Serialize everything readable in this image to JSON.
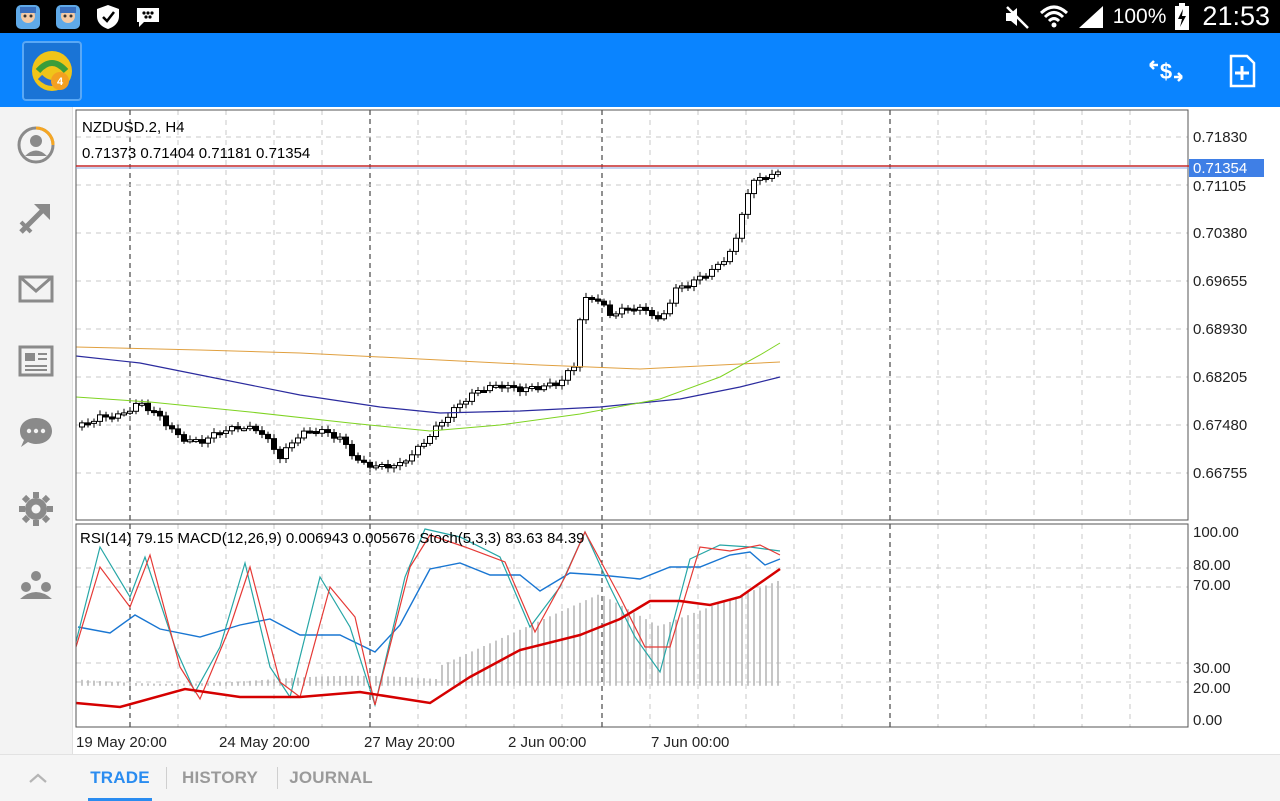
{
  "statusbar": {
    "battery_pct": "100%",
    "clock": "21:53",
    "icons": [
      "app-notification-icon",
      "app-notification-icon",
      "shield-icon",
      "messenger-icon",
      "mute-icon",
      "wifi-icon",
      "signal-icon",
      "battery-charging-icon"
    ]
  },
  "appbar": {
    "logo_icon": "metatrader-logo-icon",
    "actions": [
      "currency-exchange-icon",
      "new-order-icon"
    ]
  },
  "sidebar": {
    "items": [
      "account-icon",
      "trade-arrow-icon",
      "mail-icon",
      "news-icon",
      "chat-icon",
      "settings-icon",
      "community-icon"
    ]
  },
  "chart": {
    "symbol_label": "NZDUSD.2, H4",
    "ohlc_label": "0.71373 0.71404 0.71181 0.71354",
    "current_price": "0.71354",
    "price_ticks": [
      "0.71830",
      "0.71105",
      "0.70380",
      "0.69655",
      "0.68930",
      "0.68205",
      "0.67480",
      "0.66755"
    ],
    "indicator_label": "RSI(14) 79.15 MACD(12,26,9) 0.006943 0.005676 Stoch(5,3,3) 83.63 84.39",
    "indicator_ticks": [
      "100.00",
      "80.00",
      "70.00",
      "30.00",
      "20.00",
      "0.00"
    ],
    "time_labels": [
      "19 May 20:00",
      "24 May 20:00",
      "27 May 20:00",
      "2 Jun 00:00",
      "7 Jun 00:00"
    ],
    "colors": {
      "bid_line": "#c62828",
      "current_price_bg": "#3f7fe6",
      "ma_slow": "#2b2b9e",
      "ma_orange": "#e0a040",
      "ma_green": "#7ed321",
      "rsi": "#1976d2",
      "stoch_main": "#e53935",
      "stoch_signal": "#26a6a6",
      "macd_signal": "#d50000",
      "macd_hist": "#b8b8b8"
    }
  },
  "tabs": {
    "collapse_icon": "chevron-up-icon",
    "items": [
      "TRADE",
      "HISTORY",
      "JOURNAL"
    ],
    "active": "TRADE"
  }
}
